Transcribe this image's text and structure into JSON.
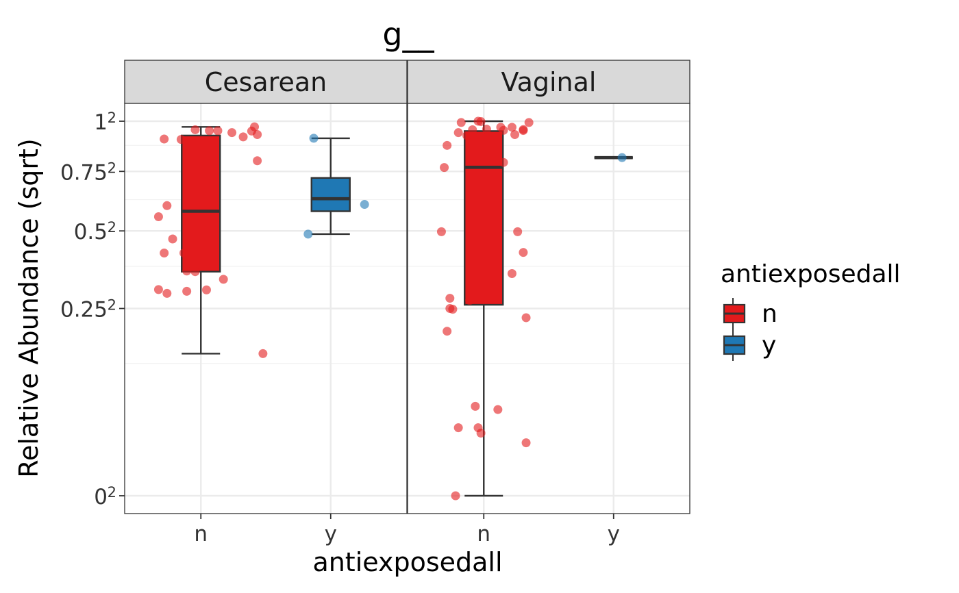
{
  "chart_data": {
    "type": "box",
    "title": "g__",
    "xlabel": "antiexposedall",
    "ylabel": "Relative Abundance (sqrt)",
    "y_scale": "sqrt",
    "ylim": [
      0,
      1
    ],
    "y_ticks": [
      {
        "value": 0,
        "base": "0",
        "exp": "2"
      },
      {
        "value": 0.25,
        "base": "0.25",
        "exp": "2"
      },
      {
        "value": 0.5,
        "base": "0.5",
        "exp": "2"
      },
      {
        "value": 0.75,
        "base": "0.75",
        "exp": "2"
      },
      {
        "value": 1,
        "base": "1",
        "exp": "2"
      }
    ],
    "categories": [
      "n",
      "y"
    ],
    "grid": true,
    "legend": {
      "title": "antiexposedall",
      "position": "right",
      "entries": [
        {
          "label": "n",
          "color": "#E31A1C"
        },
        {
          "label": "y",
          "color": "#1F78B4"
        }
      ]
    },
    "facets": [
      {
        "name": "Cesarean",
        "boxes": [
          {
            "category": "n",
            "color": "#E31A1C",
            "min": 0.144,
            "q1": 0.358,
            "median": 0.577,
            "q3": 0.925,
            "max": 0.97
          },
          {
            "category": "y",
            "color": "#1F78B4",
            "min": 0.488,
            "q1": 0.577,
            "median": 0.629,
            "q3": 0.72,
            "max": 0.911
          }
        ],
        "points": [
          {
            "category": "n",
            "x": 0.25,
            "y": 0.955
          },
          {
            "category": "n",
            "x": 0.3,
            "y": 0.95
          },
          {
            "category": "n",
            "x": 0.14,
            "y": 0.907
          },
          {
            "category": "n",
            "x": 0.2,
            "y": 0.905
          },
          {
            "category": "n",
            "x": 0.33,
            "y": 0.95
          },
          {
            "category": "n",
            "x": 0.38,
            "y": 0.94
          },
          {
            "category": "n",
            "x": 0.46,
            "y": 0.97
          },
          {
            "category": "n",
            "x": 0.45,
            "y": 0.948
          },
          {
            "category": "n",
            "x": 0.42,
            "y": 0.918
          },
          {
            "category": "n",
            "x": 0.47,
            "y": 0.93
          },
          {
            "category": "n",
            "x": 0.47,
            "y": 0.8
          },
          {
            "category": "n",
            "x": 0.15,
            "y": 0.6
          },
          {
            "category": "n",
            "x": 0.12,
            "y": 0.555
          },
          {
            "category": "n",
            "x": 0.17,
            "y": 0.47
          },
          {
            "category": "n",
            "x": 0.14,
            "y": 0.42
          },
          {
            "category": "n",
            "x": 0.21,
            "y": 0.42
          },
          {
            "category": "n",
            "x": 0.22,
            "y": 0.36
          },
          {
            "category": "n",
            "x": 0.25,
            "y": 0.358
          },
          {
            "category": "n",
            "x": 0.12,
            "y": 0.303
          },
          {
            "category": "n",
            "x": 0.15,
            "y": 0.292
          },
          {
            "category": "n",
            "x": 0.22,
            "y": 0.298
          },
          {
            "category": "n",
            "x": 0.29,
            "y": 0.302
          },
          {
            "category": "n",
            "x": 0.35,
            "y": 0.334
          },
          {
            "category": "n",
            "x": 0.49,
            "y": 0.144
          },
          {
            "category": "y",
            "x": 0.67,
            "y": 0.911
          },
          {
            "category": "y",
            "x": 0.85,
            "y": 0.605
          },
          {
            "category": "y",
            "x": 0.65,
            "y": 0.488
          }
        ]
      },
      {
        "name": "Vaginal",
        "boxes": [
          {
            "category": "n",
            "color": "#E31A1C",
            "min": 0.0,
            "q1": 0.26,
            "median": 0.769,
            "q3": 0.948,
            "max": 1.0
          },
          {
            "category": "y",
            "color": "#1F78B4",
            "min": 0.815,
            "q1": 0.815,
            "median": 0.815,
            "q3": 0.815,
            "max": 0.815
          }
        ],
        "points": [
          {
            "category": "n",
            "x": 0.19,
            "y": 0.993
          },
          {
            "category": "n",
            "x": 0.25,
            "y": 1.0
          },
          {
            "category": "n",
            "x": 0.26,
            "y": 0.998
          },
          {
            "category": "n",
            "x": 0.43,
            "y": 0.993
          },
          {
            "category": "n",
            "x": 0.33,
            "y": 0.968
          },
          {
            "category": "n",
            "x": 0.37,
            "y": 0.968
          },
          {
            "category": "n",
            "x": 0.41,
            "y": 0.956
          },
          {
            "category": "n",
            "x": 0.41,
            "y": 0.951
          },
          {
            "category": "n",
            "x": 0.23,
            "y": 0.955
          },
          {
            "category": "n",
            "x": 0.28,
            "y": 0.958
          },
          {
            "category": "n",
            "x": 0.34,
            "y": 0.952
          },
          {
            "category": "n",
            "x": 0.18,
            "y": 0.94
          },
          {
            "category": "n",
            "x": 0.21,
            "y": 0.925
          },
          {
            "category": "n",
            "x": 0.38,
            "y": 0.93
          },
          {
            "category": "n",
            "x": 0.14,
            "y": 0.875
          },
          {
            "category": "n",
            "x": 0.34,
            "y": 0.792
          },
          {
            "category": "n",
            "x": 0.13,
            "y": 0.768
          },
          {
            "category": "n",
            "x": 0.12,
            "y": 0.497
          },
          {
            "category": "n",
            "x": 0.39,
            "y": 0.497
          },
          {
            "category": "n",
            "x": 0.41,
            "y": 0.422
          },
          {
            "category": "n",
            "x": 0.37,
            "y": 0.352
          },
          {
            "category": "n",
            "x": 0.15,
            "y": 0.278
          },
          {
            "category": "n",
            "x": 0.22,
            "y": 0.272
          },
          {
            "category": "n",
            "x": 0.15,
            "y": 0.25
          },
          {
            "category": "n",
            "x": 0.16,
            "y": 0.248
          },
          {
            "category": "n",
            "x": 0.42,
            "y": 0.226
          },
          {
            "category": "n",
            "x": 0.14,
            "y": 0.193
          },
          {
            "category": "n",
            "x": 0.24,
            "y": 0.057
          },
          {
            "category": "n",
            "x": 0.32,
            "y": 0.053
          },
          {
            "category": "n",
            "x": 0.18,
            "y": 0.033
          },
          {
            "category": "n",
            "x": 0.25,
            "y": 0.033
          },
          {
            "category": "n",
            "x": 0.26,
            "y": 0.028
          },
          {
            "category": "n",
            "x": 0.42,
            "y": 0.02
          },
          {
            "category": "n",
            "x": 0.17,
            "y": 0.0
          },
          {
            "category": "y",
            "x": 0.76,
            "y": 0.815
          }
        ]
      }
    ]
  }
}
